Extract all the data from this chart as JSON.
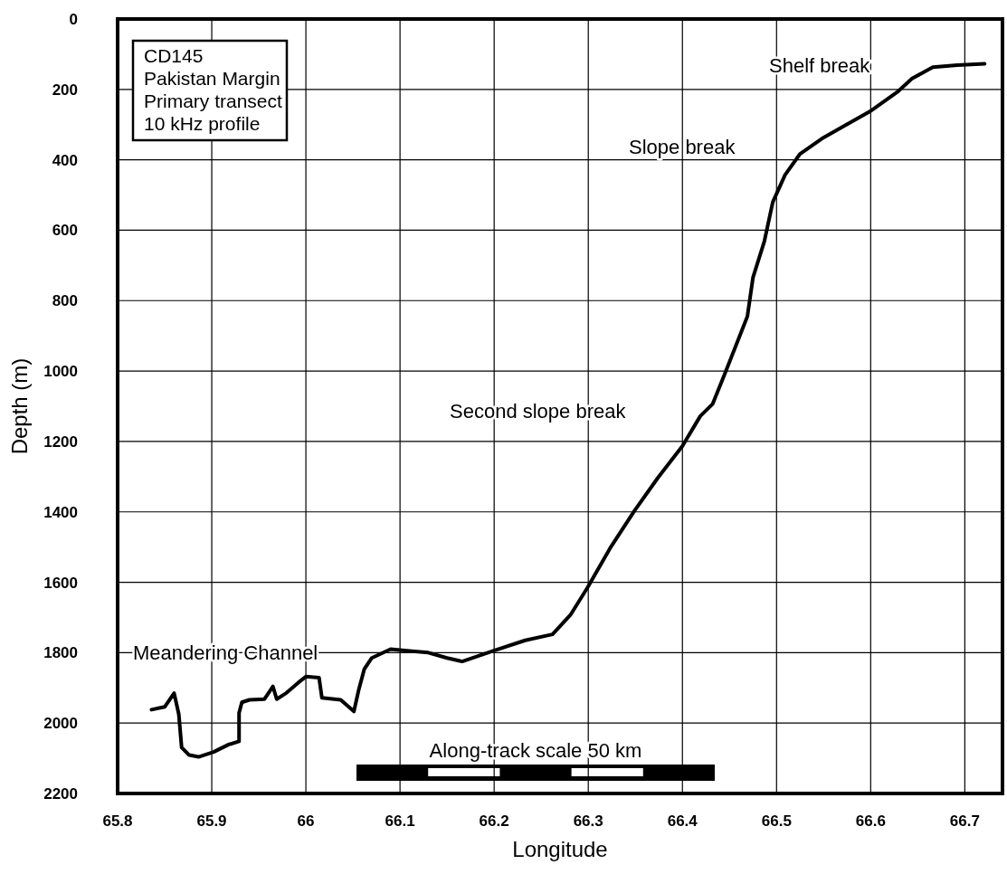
{
  "chart_data": {
    "type": "line",
    "xlabel": "Longitude",
    "ylabel": "Depth (m)",
    "xlim": [
      65.8,
      66.74
    ],
    "xticks": [
      65.8,
      65.9,
      66,
      66.1,
      66.2,
      66.3,
      66.4,
      66.5,
      66.6,
      66.7
    ],
    "ylim": [
      2200,
      0
    ],
    "yticks": [
      0,
      200,
      400,
      600,
      800,
      1000,
      1200,
      1400,
      1600,
      1800,
      2000,
      2200
    ],
    "grid": true,
    "marker": "none",
    "line_style": "solid",
    "series": [
      {
        "color": "#000000",
        "x": [
          65.836,
          65.85,
          65.86,
          65.865,
          65.868,
          65.876,
          65.886,
          65.902,
          65.918,
          65.929,
          65.929,
          65.932,
          65.94,
          65.956,
          65.965,
          65.969,
          65.979,
          65.992,
          66.0,
          66.014,
          66.017,
          66.037,
          66.051,
          66.056,
          66.062,
          66.07,
          66.09,
          66.11,
          66.13,
          66.15,
          66.166,
          66.199,
          66.233,
          66.262,
          66.281,
          66.299,
          66.323,
          66.349,
          66.374,
          66.4,
          66.419,
          66.432,
          66.445,
          66.469,
          66.475,
          66.487,
          66.496,
          66.509,
          66.525,
          66.548,
          66.573,
          66.599,
          66.628,
          66.644,
          66.666,
          66.692,
          66.721
        ],
        "values": [
          1962,
          1954,
          1915,
          1975,
          2069,
          2091,
          2096,
          2082,
          2061,
          2052,
          1971,
          1941,
          1934,
          1932,
          1896,
          1932,
          1915,
          1885,
          1868,
          1871,
          1928,
          1934,
          1967,
          1907,
          1847,
          1815,
          1790,
          1795,
          1800,
          1815,
          1825,
          1795,
          1765,
          1748,
          1693,
          1616,
          1504,
          1397,
          1303,
          1213,
          1128,
          1094,
          1008,
          845,
          734,
          632,
          520,
          443,
          383,
          340,
          302,
          263,
          208,
          169,
          137,
          131,
          127
        ]
      }
    ],
    "annotations": [
      "CD145\nPakistan Margin\nPrimary transect\n10 kHz profile",
      "Shelf break",
      "Slope break",
      "Second slope break",
      "Meandering Channel",
      "Along-track scale 50 km"
    ]
  }
}
